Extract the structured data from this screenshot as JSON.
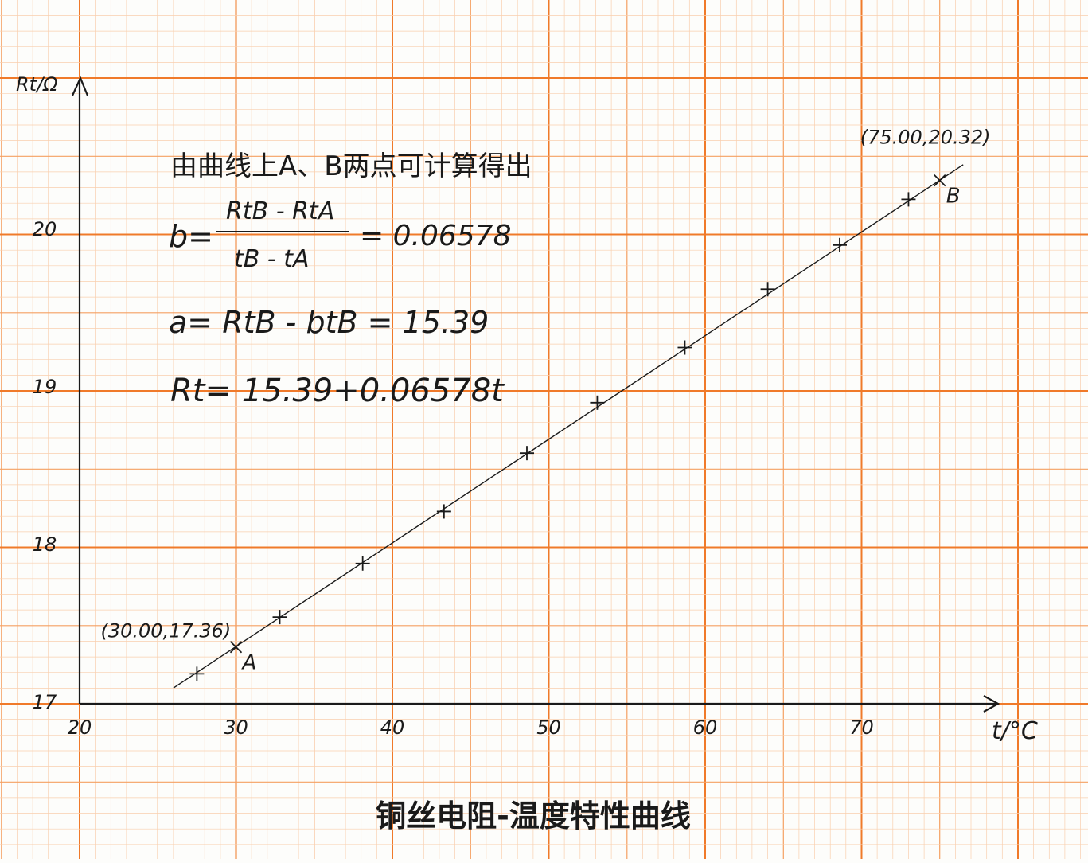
{
  "chart_data": {
    "type": "scatter",
    "title": "铜丝电阻-温度特性曲线",
    "xlabel": "t/°C",
    "ylabel": "Rt/Ω",
    "xlim": [
      20,
      78
    ],
    "ylim": [
      17,
      20.6
    ],
    "x_ticks": [
      "20",
      "30",
      "40",
      "50",
      "60",
      "70"
    ],
    "y_ticks": [
      "17",
      "18",
      "19",
      "20"
    ],
    "grid": true,
    "series": [
      {
        "x": [
          27.5,
          32.8,
          38.1,
          43.3,
          48.6,
          53.1,
          58.7,
          64.0,
          68.6,
          73.0
        ],
        "y": [
          17.19,
          17.55,
          17.89,
          18.22,
          18.59,
          18.91,
          19.26,
          19.63,
          19.91,
          20.2
        ]
      }
    ],
    "fit_line": {
      "x": [
        26.0,
        76.5
      ],
      "y": [
        17.1,
        20.42
      ]
    },
    "marked_points": [
      {
        "label": "A",
        "coord_label": "(30.00,17.36)",
        "x": 30.0,
        "y": 17.36
      },
      {
        "label": "B",
        "coord_label": "(75.00,20.32)",
        "x": 75.0,
        "y": 20.32
      }
    ],
    "annotations": {
      "intro": "由曲线上A、B两点可计算得出",
      "b_lhs": "b=",
      "b_numerator": "RtB - RtA",
      "b_denominator": "tB - tA",
      "b_result": "= 0.06578",
      "a_formula": "a= RtB - btB = 15.39",
      "rt_formula": "Rt= 15.39+0.06578t"
    }
  },
  "colors": {
    "paper": "#fdfdfb",
    "grid_major": "#f07a2a",
    "grid_mid": "#f5a062",
    "grid_minor": "#f9cfae",
    "ink": "#1a1a1a"
  }
}
